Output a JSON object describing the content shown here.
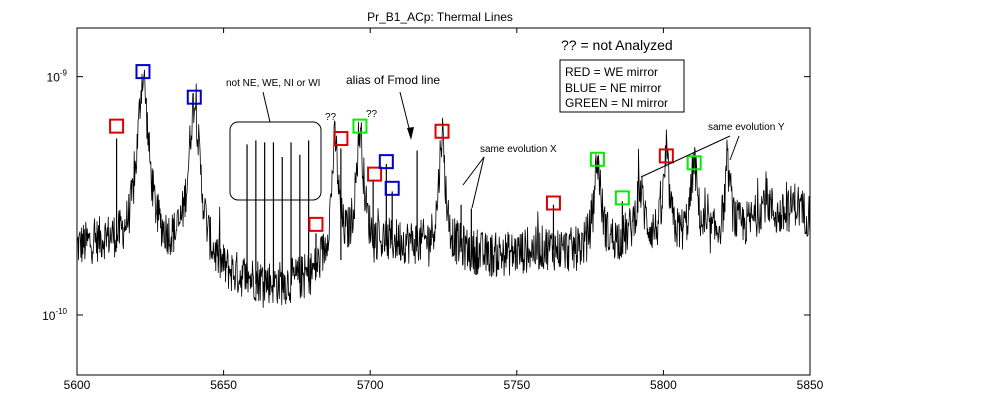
{
  "chart_data": {
    "type": "line",
    "title": "Pr_B1_ACp: Thermal Lines",
    "xlabel": "",
    "ylabel": "",
    "xlim": [
      5600,
      5850
    ],
    "yscale": "log",
    "ylim": [
      5.6e-11,
      1.6e-09
    ],
    "x_ticks": [
      5600,
      5650,
      5700,
      5750,
      5800,
      5850
    ],
    "y_ticks": [
      {
        "value": 1e-09,
        "base": "10",
        "exp": "-9"
      },
      {
        "value": 1e-10,
        "base": "10",
        "exp": "-10"
      }
    ],
    "grid": false,
    "line_color": "#000000",
    "series": [
      {
        "baseline_points": [
          {
            "x": 5600,
            "y": 1.9e-10
          },
          {
            "x": 5605,
            "y": 1.95e-10
          },
          {
            "x": 5610,
            "y": 2e-10
          },
          {
            "x": 5618,
            "y": 1.8e-10
          },
          {
            "x": 5630,
            "y": 1.75e-10
          },
          {
            "x": 5650,
            "y": 1.4e-10
          },
          {
            "x": 5660,
            "y": 1.35e-10
          },
          {
            "x": 5670,
            "y": 1.3e-10
          },
          {
            "x": 5680,
            "y": 1.4e-10
          },
          {
            "x": 5690,
            "y": 1.7e-10
          },
          {
            "x": 5700,
            "y": 1.9e-10
          },
          {
            "x": 5710,
            "y": 2e-10
          },
          {
            "x": 5720,
            "y": 1.9e-10
          },
          {
            "x": 5730,
            "y": 1.85e-10
          },
          {
            "x": 5740,
            "y": 1.75e-10
          },
          {
            "x": 5750,
            "y": 1.8e-10
          },
          {
            "x": 5760,
            "y": 1.9e-10
          },
          {
            "x": 5770,
            "y": 1.8e-10
          },
          {
            "x": 5780,
            "y": 1.9e-10
          },
          {
            "x": 5790,
            "y": 2.05e-10
          },
          {
            "x": 5800,
            "y": 2e-10
          },
          {
            "x": 5810,
            "y": 2.05e-10
          },
          {
            "x": 5820,
            "y": 2.05e-10
          },
          {
            "x": 5830,
            "y": 2.3e-10
          },
          {
            "x": 5840,
            "y": 2.35e-10
          },
          {
            "x": 5850,
            "y": 2.55e-10
          }
        ],
        "noise_factor": 0.22,
        "lines": [
          {
            "x": 5613.5,
            "y": 5.5e-10,
            "kind": "spike"
          },
          {
            "x": 5622.5,
            "y": 1e-09,
            "kind": "broad",
            "width": 1.6
          },
          {
            "x": 5640.0,
            "y": 7.8e-10,
            "kind": "broad",
            "width": 1.7
          },
          {
            "x": 5658.0,
            "y": 5.2e-10,
            "kind": "spike"
          },
          {
            "x": 5661.0,
            "y": 5.4e-10,
            "kind": "spike"
          },
          {
            "x": 5664.0,
            "y": 5.3e-10,
            "kind": "spike"
          },
          {
            "x": 5667.0,
            "y": 5.3e-10,
            "kind": "spike"
          },
          {
            "x": 5670.0,
            "y": 4.6e-10,
            "kind": "spike"
          },
          {
            "x": 5673.0,
            "y": 5.3e-10,
            "kind": "spike"
          },
          {
            "x": 5676.0,
            "y": 4.7e-10,
            "kind": "spike"
          },
          {
            "x": 5679.0,
            "y": 5.4e-10,
            "kind": "spike"
          },
          {
            "x": 5681.5,
            "y": 2.2e-10,
            "kind": "spike"
          },
          {
            "x": 5688.0,
            "y": 5.3e-10,
            "kind": "broad",
            "width": 1.1
          },
          {
            "x": 5690.0,
            "y": 5e-10,
            "kind": "spike"
          },
          {
            "x": 5696.5,
            "y": 5.9e-10,
            "kind": "broad",
            "width": 1.2
          },
          {
            "x": 5701.0,
            "y": 3.7e-10,
            "kind": "spike"
          },
          {
            "x": 5705.5,
            "y": 4.3e-10,
            "kind": "spike"
          },
          {
            "x": 5707.5,
            "y": 3.3e-10,
            "kind": "spike"
          },
          {
            "x": 5716.0,
            "y": 4.9e-10,
            "kind": "spike"
          },
          {
            "x": 5724.5,
            "y": 5.8e-10,
            "kind": "broad",
            "width": 1.0
          },
          {
            "x": 5731.0,
            "y": 2.9e-10,
            "kind": "spike"
          },
          {
            "x": 5734.5,
            "y": 2.8e-10,
            "kind": "spike"
          },
          {
            "x": 5762.5,
            "y": 2.9e-10,
            "kind": "spike"
          },
          {
            "x": 5777.5,
            "y": 4.4e-10,
            "kind": "broad",
            "width": 1.2
          },
          {
            "x": 5786.0,
            "y": 3e-10,
            "kind": "spike"
          },
          {
            "x": 5792.0,
            "y": 3.3e-10,
            "kind": "broad",
            "width": 1.5
          },
          {
            "x": 5801.0,
            "y": 4.5e-10,
            "kind": "broad",
            "width": 1.0
          },
          {
            "x": 5810.5,
            "y": 4.3e-10,
            "kind": "broad",
            "width": 1.1
          },
          {
            "x": 5822.0,
            "y": 4e-10,
            "kind": "broad",
            "width": 1.1
          },
          {
            "x": 5835.0,
            "y": 3e-10,
            "kind": "broad",
            "width": 2.5
          },
          {
            "x": 5845.0,
            "y": 2.9e-10,
            "kind": "broad",
            "width": 2.5
          }
        ]
      }
    ],
    "markers": [
      {
        "x": 5613.5,
        "y": 6.2e-10,
        "color": "#dd0000",
        "group": "WE"
      },
      {
        "x": 5622.5,
        "y": 1.05e-09,
        "color": "#0000cc",
        "group": "NE"
      },
      {
        "x": 5640.0,
        "y": 8.2e-10,
        "color": "#0000cc",
        "group": "NE"
      },
      {
        "x": 5681.5,
        "y": 2.4e-10,
        "color": "#dd0000",
        "group": "WE"
      },
      {
        "x": 5690.0,
        "y": 5.5e-10,
        "color": "#dd0000",
        "group": "WE"
      },
      {
        "x": 5696.5,
        "y": 6.2e-10,
        "color": "#00ee00",
        "group": "NI"
      },
      {
        "x": 5701.5,
        "y": 3.9e-10,
        "color": "#dd0000",
        "group": "WE"
      },
      {
        "x": 5705.5,
        "y": 4.4e-10,
        "color": "#0000cc",
        "group": "NE"
      },
      {
        "x": 5707.5,
        "y": 3.4e-10,
        "color": "#0000cc",
        "group": "NE"
      },
      {
        "x": 5724.5,
        "y": 5.9e-10,
        "color": "#dd0000",
        "group": "WE"
      },
      {
        "x": 5762.5,
        "y": 2.95e-10,
        "color": "#dd0000",
        "group": "WE"
      },
      {
        "x": 5777.5,
        "y": 4.5e-10,
        "color": "#00ee00",
        "group": "NI"
      },
      {
        "x": 5786.0,
        "y": 3.1e-10,
        "color": "#00ee00",
        "group": "NI"
      },
      {
        "x": 5801.0,
        "y": 4.65e-10,
        "color": "#dd0000",
        "group": "WE"
      },
      {
        "x": 5810.5,
        "y": 4.35e-10,
        "color": "#00ee00",
        "group": "NI"
      }
    ],
    "annotations": {
      "legend_title": "?? = not Analyzed",
      "legend_items": [
        "RED = WE mirror",
        "BLUE = NE mirror",
        "GREEN = NI mirror"
      ],
      "legend_placement": "top-right",
      "not_ne_label": "not NE, WE, NI or WI",
      "alias_label": "alias of Fmod line",
      "evo_x_label": "same evolution X",
      "evo_y_label": "same evolution Y",
      "qq_1": "??",
      "qq_2": "??"
    }
  }
}
